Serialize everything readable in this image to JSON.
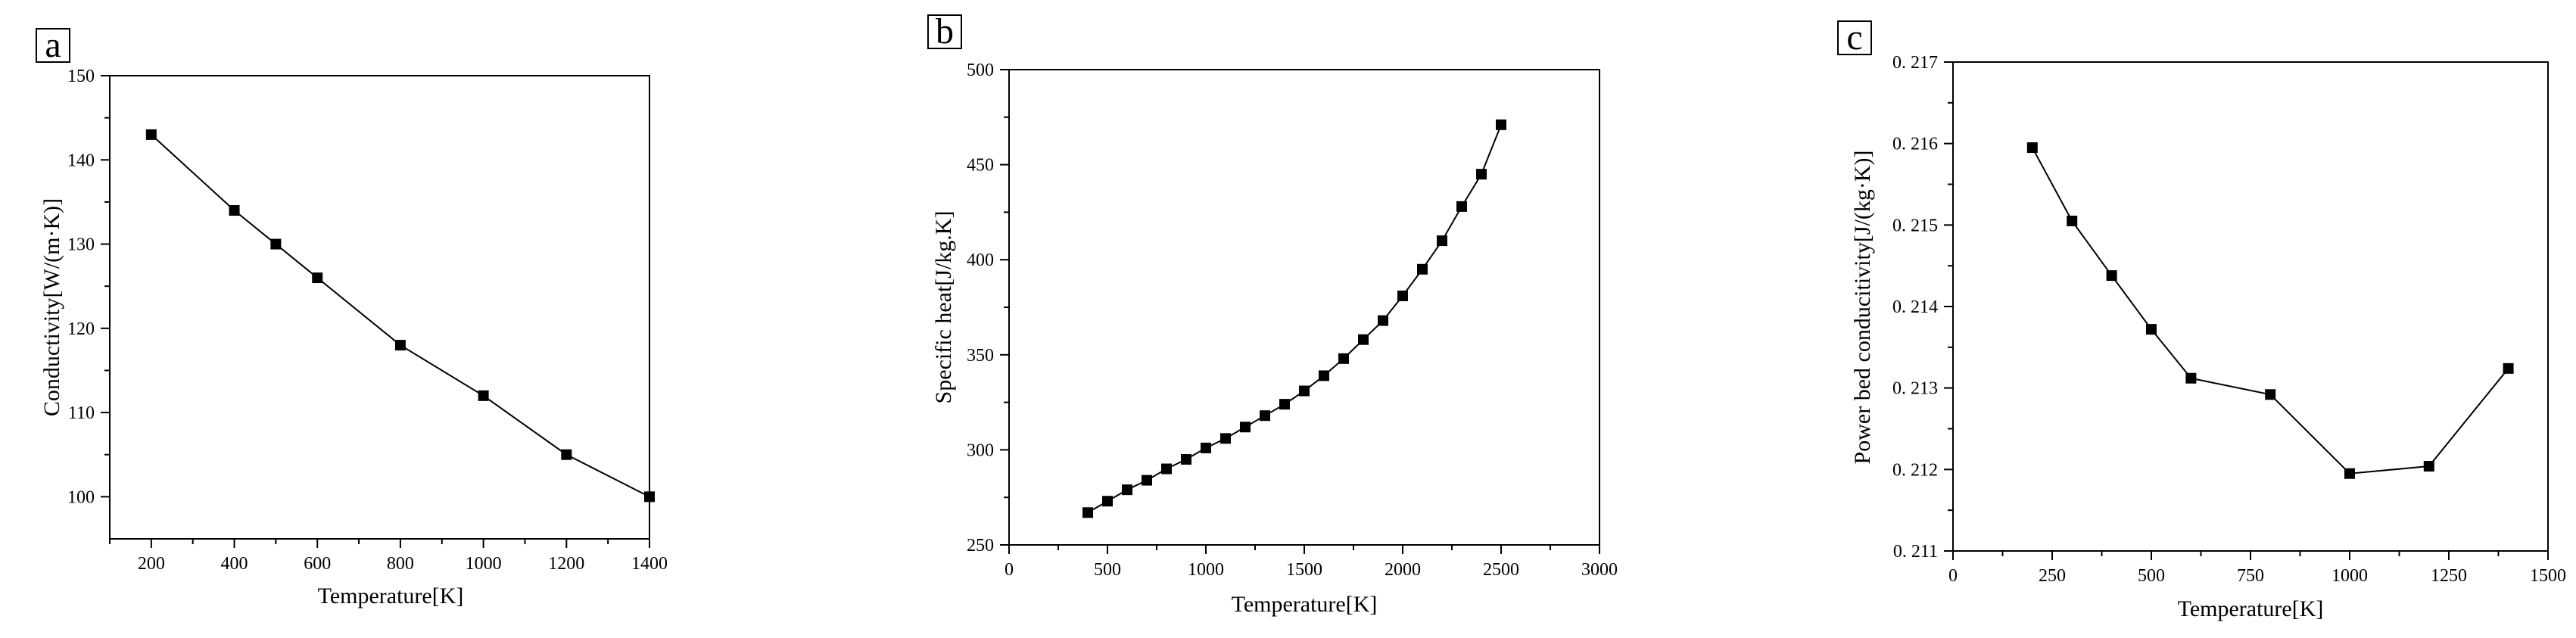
{
  "chart_data": [
    {
      "panel": "a",
      "type": "line",
      "xlabel": "Temperature[K]",
      "ylabel": "Conductivity[W/(m·K)]",
      "xlim": [
        100,
        1400
      ],
      "ylim": [
        95,
        150
      ],
      "xticks": [
        200,
        400,
        600,
        800,
        1000,
        1200,
        1400
      ],
      "yticks": [
        100,
        110,
        120,
        130,
        140,
        150
      ],
      "series": [
        {
          "name": "Conductivity",
          "x": [
            200,
            400,
            500,
            600,
            800,
            1000,
            1200,
            1400
          ],
          "y": [
            143,
            134,
            130,
            126,
            118,
            112,
            105,
            100
          ]
        }
      ]
    },
    {
      "panel": "b",
      "type": "line",
      "xlabel": "Temperature[K]",
      "ylabel": "Specific heat[J/kg.K]",
      "xlim": [
        0,
        3000
      ],
      "ylim": [
        250,
        500
      ],
      "xticks": [
        0,
        500,
        1000,
        1500,
        2000,
        2500,
        3000
      ],
      "yticks": [
        250,
        300,
        350,
        400,
        450,
        500
      ],
      "series": [
        {
          "name": "Specific heat",
          "x": [
            400,
            500,
            600,
            700,
            800,
            900,
            1000,
            1100,
            1200,
            1300,
            1400,
            1500,
            1600,
            1700,
            1800,
            1900,
            2000,
            2100,
            2200,
            2300,
            2400,
            2500
          ],
          "y": [
            267,
            273,
            279,
            284,
            290,
            295,
            301,
            306,
            312,
            318,
            324,
            331,
            339,
            348,
            358,
            368,
            381,
            395,
            410,
            428,
            445,
            471
          ]
        }
      ]
    },
    {
      "panel": "c",
      "type": "line",
      "xlabel": "Temperature[K]",
      "ylabel": "Power bed conducitivity[J/(kg·K)]",
      "xlim": [
        0,
        1500
      ],
      "ylim": [
        0.211,
        0.217
      ],
      "xticks": [
        0,
        250,
        500,
        750,
        1000,
        1250,
        1500
      ],
      "yticks": [
        0.211,
        0.212,
        0.213,
        0.214,
        0.215,
        0.216,
        0.217
      ],
      "ytick_labels": [
        "0. 211",
        "0. 212",
        "0. 213",
        "0. 214",
        "0. 215",
        "0. 216",
        "0. 217"
      ],
      "series": [
        {
          "name": "Powder bed conductivity",
          "x": [
            200,
            300,
            400,
            500,
            600,
            800,
            1000,
            1200,
            1400
          ],
          "y": [
            0.21595,
            0.21505,
            0.21438,
            0.21372,
            0.21312,
            0.21292,
            0.21195,
            0.21204,
            0.21324
          ]
        }
      ]
    }
  ]
}
